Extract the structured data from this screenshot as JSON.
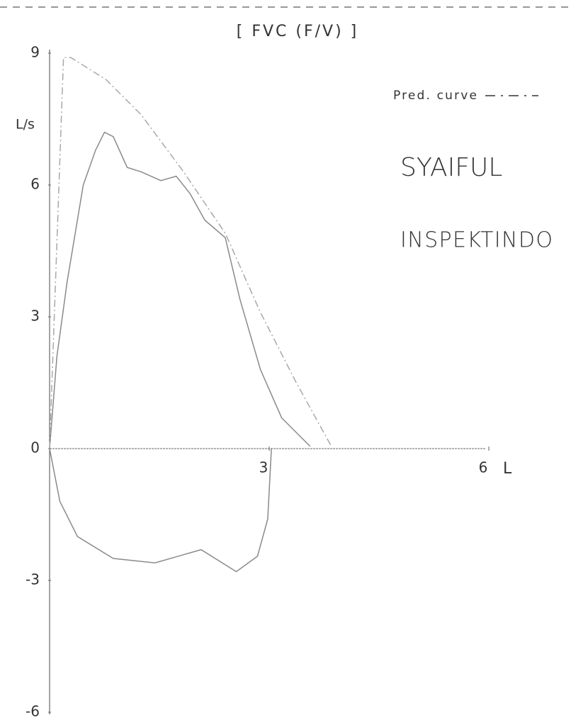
{
  "chart_data": {
    "type": "line",
    "title": "[ FVC (F/V) ]",
    "x_label": "L",
    "y_label": "L/s",
    "xlim": [
      0,
      6
    ],
    "ylim": [
      -6,
      9
    ],
    "xticks": [
      3,
      6
    ],
    "yticks": [
      -6,
      -3,
      0,
      3,
      6,
      9
    ],
    "legend": "upper right",
    "annotations": [
      "SYAIFUL",
      "INSPEKTINDO"
    ],
    "series": [
      {
        "color": "#8a8a8a",
        "x": [
          0,
          0.1,
          0.24,
          0.46,
          0.63,
          0.75,
          0.87,
          1.06,
          1.25,
          1.52,
          1.73,
          1.92,
          2.12,
          2.4,
          2.6,
          2.88,
          3.17,
          3.56
        ],
        "values": [
          0,
          2.1,
          3.8,
          6.0,
          6.8,
          7.2,
          7.1,
          6.4,
          6.3,
          6.1,
          6.2,
          5.8,
          5.2,
          4.8,
          3.4,
          1.8,
          0.7,
          0.05
        ]
      },
      {
        "color": "#8a8a8a",
        "x": [
          0,
          0.14,
          0.38,
          0.87,
          1.44,
          2.07,
          2.55,
          2.84,
          2.98,
          3.03
        ],
        "values": [
          0,
          -1.2,
          -2.0,
          -2.5,
          -2.6,
          -2.3,
          -2.8,
          -2.45,
          -1.6,
          0
        ]
      },
      {
        "name": "Pred. curve",
        "color": "#a8a8a8",
        "dash": "10 4 2 4",
        "x": [
          0,
          0.19,
          0.29,
          0.77,
          1.25,
          1.83,
          2.4,
          2.88,
          3.37,
          3.85
        ],
        "values": [
          0,
          8.9,
          8.9,
          8.4,
          7.6,
          6.3,
          4.9,
          3.1,
          1.5,
          0.05
        ]
      }
    ]
  }
}
